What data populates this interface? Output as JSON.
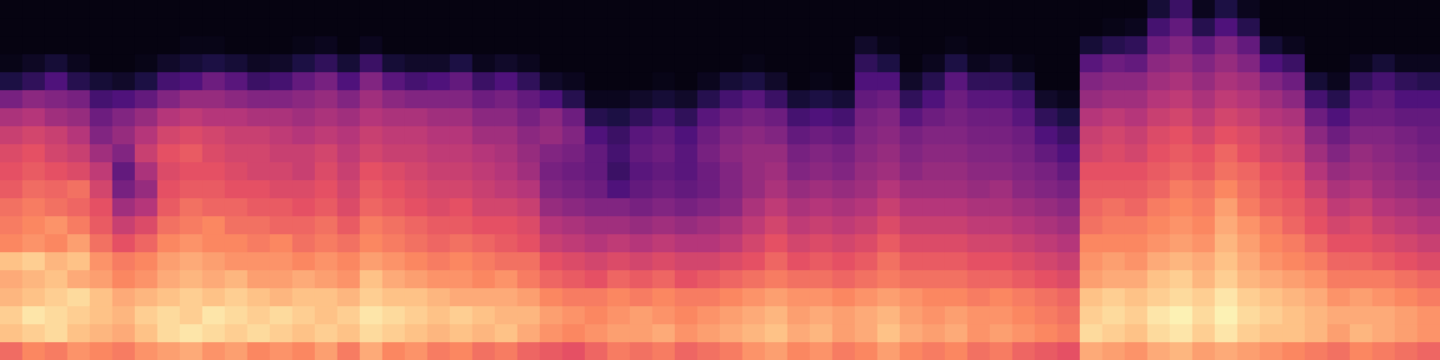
{
  "chart_data": {
    "type": "heatmap",
    "tick_labels": false,
    "grid": false,
    "zlim": [
      0,
      80
    ],
    "frames": [
      [
        55,
        70,
        72,
        68,
        66,
        70,
        60,
        58,
        56,
        52,
        50,
        48,
        44,
        38,
        28,
        10,
        3,
        2,
        2,
        2
      ],
      [
        60,
        72,
        76,
        70,
        68,
        72,
        62,
        60,
        58,
        55,
        52,
        50,
        46,
        40,
        32,
        14,
        5,
        2,
        2,
        2
      ],
      [
        58,
        74,
        74,
        72,
        70,
        68,
        60,
        62,
        56,
        54,
        50,
        46,
        44,
        36,
        30,
        20,
        8,
        2,
        2,
        2
      ],
      [
        62,
        70,
        72,
        74,
        66,
        70,
        64,
        58,
        54,
        56,
        48,
        44,
        40,
        34,
        28,
        12,
        4,
        2,
        2,
        2
      ],
      [
        60,
        68,
        70,
        70,
        64,
        62,
        56,
        52,
        50,
        46,
        42,
        36,
        30,
        26,
        18,
        8,
        2,
        2,
        2,
        2
      ],
      [
        58,
        66,
        68,
        66,
        60,
        58,
        50,
        44,
        36,
        28,
        24,
        30,
        34,
        30,
        20,
        6,
        2,
        2,
        2,
        2
      ],
      [
        62,
        70,
        72,
        68,
        62,
        60,
        54,
        48,
        40,
        34,
        38,
        44,
        40,
        34,
        24,
        10,
        3,
        2,
        2,
        2
      ],
      [
        64,
        74,
        74,
        70,
        66,
        64,
        60,
        56,
        52,
        50,
        48,
        50,
        46,
        40,
        30,
        18,
        6,
        2,
        2,
        2
      ],
      [
        66,
        76,
        72,
        72,
        68,
        66,
        62,
        58,
        56,
        52,
        50,
        52,
        48,
        42,
        34,
        20,
        8,
        3,
        2,
        2
      ],
      [
        62,
        74,
        76,
        70,
        66,
        64,
        60,
        60,
        54,
        52,
        50,
        48,
        46,
        40,
        34,
        26,
        10,
        3,
        2,
        2
      ],
      [
        64,
        72,
        74,
        72,
        68,
        62,
        60,
        56,
        54,
        50,
        48,
        46,
        44,
        40,
        32,
        22,
        8,
        2,
        2,
        2
      ],
      [
        60,
        74,
        72,
        70,
        64,
        62,
        58,
        56,
        52,
        50,
        46,
        46,
        44,
        38,
        30,
        16,
        5,
        2,
        2,
        2
      ],
      [
        62,
        72,
        74,
        68,
        64,
        62,
        60,
        54,
        52,
        48,
        46,
        44,
        42,
        38,
        30,
        18,
        6,
        2,
        2,
        2
      ],
      [
        60,
        70,
        72,
        70,
        66,
        60,
        56,
        54,
        50,
        48,
        44,
        44,
        40,
        36,
        32,
        24,
        10,
        3,
        2,
        2
      ],
      [
        64,
        72,
        70,
        70,
        64,
        62,
        58,
        56,
        52,
        50,
        48,
        46,
        42,
        38,
        34,
        28,
        14,
        4,
        2,
        2
      ],
      [
        58,
        70,
        72,
        68,
        62,
        60,
        56,
        52,
        48,
        46,
        44,
        42,
        40,
        36,
        30,
        20,
        8,
        2,
        2,
        2
      ],
      [
        66,
        74,
        76,
        72,
        70,
        64,
        60,
        58,
        54,
        52,
        50,
        46,
        44,
        40,
        36,
        30,
        16,
        4,
        2,
        2
      ],
      [
        60,
        72,
        74,
        70,
        66,
        62,
        58,
        56,
        52,
        50,
        48,
        44,
        42,
        38,
        32,
        22,
        8,
        2,
        2,
        2
      ],
      [
        62,
        70,
        72,
        70,
        64,
        60,
        56,
        54,
        50,
        48,
        46,
        44,
        42,
        38,
        30,
        18,
        6,
        2,
        2,
        2
      ],
      [
        58,
        68,
        70,
        68,
        62,
        58,
        54,
        52,
        48,
        46,
        44,
        42,
        40,
        36,
        30,
        20,
        6,
        2,
        2,
        2
      ],
      [
        60,
        70,
        72,
        66,
        62,
        60,
        56,
        52,
        50,
        46,
        44,
        42,
        40,
        36,
        30,
        24,
        10,
        2,
        2,
        2
      ],
      [
        56,
        68,
        70,
        66,
        60,
        58,
        54,
        50,
        46,
        44,
        42,
        40,
        36,
        32,
        26,
        16,
        4,
        2,
        2,
        2
      ],
      [
        58,
        70,
        68,
        66,
        62,
        56,
        52,
        50,
        46,
        42,
        40,
        38,
        36,
        32,
        28,
        20,
        6,
        2,
        2,
        2
      ],
      [
        54,
        66,
        68,
        64,
        58,
        56,
        50,
        48,
        44,
        40,
        36,
        34,
        32,
        28,
        24,
        14,
        4,
        2,
        2,
        2
      ],
      [
        52,
        62,
        64,
        60,
        54,
        50,
        44,
        40,
        34,
        30,
        28,
        30,
        34,
        32,
        20,
        6,
        2,
        2,
        2,
        2
      ],
      [
        50,
        60,
        62,
        58,
        52,
        48,
        42,
        38,
        32,
        28,
        26,
        28,
        30,
        26,
        12,
        4,
        2,
        2,
        2,
        2
      ],
      [
        54,
        62,
        60,
        58,
        50,
        46,
        40,
        36,
        30,
        26,
        24,
        24,
        20,
        12,
        4,
        2,
        2,
        2,
        2,
        2
      ],
      [
        58,
        64,
        62,
        60,
        54,
        48,
        42,
        36,
        30,
        20,
        16,
        18,
        16,
        10,
        4,
        2,
        2,
        2,
        2,
        2
      ],
      [
        56,
        64,
        64,
        58,
        52,
        46,
        40,
        34,
        28,
        24,
        22,
        24,
        22,
        14,
        6,
        2,
        2,
        2,
        2,
        2
      ],
      [
        58,
        66,
        62,
        60,
        54,
        48,
        42,
        36,
        30,
        26,
        24,
        26,
        24,
        18,
        8,
        3,
        2,
        2,
        2,
        2
      ],
      [
        54,
        62,
        60,
        58,
        50,
        46,
        40,
        34,
        28,
        24,
        22,
        22,
        20,
        14,
        6,
        2,
        2,
        2,
        2,
        2
      ],
      [
        56,
        64,
        62,
        58,
        52,
        46,
        40,
        36,
        30,
        26,
        26,
        28,
        26,
        22,
        12,
        4,
        2,
        2,
        2,
        2
      ],
      [
        58,
        66,
        64,
        60,
        54,
        48,
        42,
        38,
        32,
        30,
        30,
        32,
        30,
        26,
        18,
        8,
        2,
        2,
        2,
        2
      ],
      [
        62,
        68,
        66,
        62,
        56,
        50,
        46,
        42,
        38,
        34,
        34,
        34,
        32,
        28,
        22,
        10,
        3,
        2,
        2,
        2
      ],
      [
        64,
        70,
        68,
        64,
        58,
        54,
        50,
        46,
        42,
        38,
        36,
        34,
        30,
        26,
        16,
        6,
        2,
        2,
        2,
        2
      ],
      [
        60,
        66,
        64,
        62,
        56,
        50,
        46,
        42,
        38,
        34,
        30,
        28,
        24,
        18,
        8,
        2,
        2,
        2,
        2,
        2
      ],
      [
        62,
        68,
        66,
        62,
        56,
        52,
        48,
        44,
        40,
        36,
        32,
        30,
        26,
        20,
        10,
        3,
        2,
        2,
        2,
        2
      ],
      [
        58,
        64,
        64,
        60,
        54,
        50,
        46,
        42,
        38,
        34,
        30,
        28,
        24,
        18,
        8,
        2,
        2,
        2,
        2,
        2
      ],
      [
        60,
        66,
        66,
        62,
        56,
        52,
        48,
        44,
        40,
        36,
        34,
        32,
        30,
        28,
        24,
        20,
        14,
        6,
        2,
        2
      ],
      [
        64,
        70,
        68,
        64,
        58,
        56,
        52,
        48,
        44,
        40,
        36,
        34,
        32,
        30,
        26,
        20,
        10,
        3,
        2,
        2
      ],
      [
        60,
        66,
        64,
        62,
        56,
        52,
        48,
        44,
        40,
        36,
        32,
        30,
        28,
        22,
        14,
        6,
        2,
        2,
        2,
        2
      ],
      [
        58,
        64,
        62,
        60,
        56,
        52,
        48,
        44,
        40,
        36,
        34,
        32,
        30,
        26,
        20,
        12,
        4,
        2,
        2,
        2
      ],
      [
        60,
        66,
        64,
        60,
        56,
        52,
        48,
        44,
        40,
        36,
        34,
        32,
        30,
        28,
        26,
        22,
        10,
        3,
        2,
        2
      ],
      [
        56,
        62,
        62,
        58,
        54,
        50,
        46,
        42,
        38,
        34,
        32,
        30,
        28,
        26,
        22,
        14,
        4,
        2,
        2,
        2
      ],
      [
        58,
        64,
        62,
        60,
        54,
        50,
        46,
        42,
        38,
        36,
        32,
        30,
        28,
        26,
        22,
        14,
        6,
        2,
        2,
        2
      ],
      [
        54,
        62,
        60,
        58,
        52,
        48,
        44,
        40,
        36,
        32,
        30,
        28,
        26,
        22,
        18,
        10,
        3,
        2,
        2,
        2
      ],
      [
        52,
        60,
        58,
        56,
        50,
        46,
        42,
        38,
        34,
        30,
        28,
        24,
        20,
        14,
        6,
        2,
        2,
        2,
        2,
        2
      ],
      [
        50,
        58,
        56,
        54,
        48,
        44,
        40,
        36,
        32,
        28,
        24,
        20,
        16,
        10,
        4,
        2,
        2,
        2,
        2,
        2
      ],
      [
        66,
        74,
        72,
        70,
        64,
        62,
        60,
        56,
        54,
        52,
        50,
        46,
        44,
        40,
        34,
        30,
        22,
        8,
        2,
        2
      ],
      [
        64,
        72,
        74,
        72,
        66,
        64,
        60,
        58,
        56,
        52,
        50,
        48,
        46,
        42,
        36,
        32,
        26,
        12,
        3,
        2
      ],
      [
        62,
        70,
        72,
        70,
        66,
        62,
        60,
        58,
        54,
        52,
        50,
        46,
        44,
        40,
        36,
        32,
        24,
        14,
        4,
        2
      ],
      [
        66,
        74,
        76,
        72,
        70,
        66,
        62,
        60,
        58,
        54,
        52,
        50,
        48,
        44,
        40,
        36,
        32,
        26,
        18,
        8
      ],
      [
        68,
        76,
        78,
        74,
        72,
        68,
        64,
        62,
        60,
        58,
        54,
        52,
        50,
        46,
        42,
        38,
        34,
        30,
        24,
        16
      ],
      [
        64,
        72,
        74,
        72,
        68,
        66,
        62,
        60,
        58,
        56,
        52,
        50,
        46,
        42,
        38,
        34,
        30,
        24,
        12,
        4
      ],
      [
        66,
        76,
        78,
        76,
        72,
        70,
        68,
        66,
        64,
        60,
        56,
        54,
        50,
        46,
        42,
        38,
        34,
        30,
        20,
        10
      ],
      [
        64,
        72,
        74,
        72,
        68,
        66,
        64,
        62,
        58,
        56,
        54,
        50,
        48,
        44,
        40,
        36,
        30,
        24,
        12,
        4
      ],
      [
        62,
        70,
        72,
        70,
        66,
        62,
        60,
        58,
        54,
        52,
        50,
        46,
        44,
        40,
        36,
        30,
        20,
        8,
        2,
        2
      ],
      [
        60,
        70,
        70,
        68,
        64,
        60,
        58,
        54,
        52,
        50,
        48,
        44,
        42,
        38,
        32,
        26,
        16,
        4,
        2,
        2
      ],
      [
        58,
        68,
        68,
        66,
        62,
        58,
        54,
        50,
        48,
        44,
        40,
        36,
        32,
        26,
        18,
        8,
        2,
        2,
        2,
        2
      ],
      [
        56,
        64,
        66,
        62,
        58,
        54,
        50,
        46,
        42,
        38,
        34,
        30,
        26,
        20,
        12,
        4,
        2,
        2,
        2,
        2
      ],
      [
        60,
        68,
        66,
        64,
        58,
        54,
        50,
        48,
        44,
        40,
        36,
        34,
        30,
        26,
        22,
        14,
        4,
        2,
        2,
        2
      ],
      [
        58,
        66,
        66,
        62,
        58,
        52,
        48,
        44,
        40,
        36,
        34,
        32,
        30,
        26,
        24,
        18,
        8,
        2,
        2,
        2
      ],
      [
        56,
        64,
        64,
        60,
        56,
        50,
        46,
        42,
        38,
        34,
        32,
        30,
        28,
        24,
        20,
        14,
        4,
        2,
        2,
        2
      ],
      [
        54,
        62,
        62,
        58,
        54,
        48,
        44,
        40,
        36,
        32,
        30,
        28,
        26,
        24,
        20,
        12,
        4,
        2,
        2,
        2
      ]
    ]
  }
}
